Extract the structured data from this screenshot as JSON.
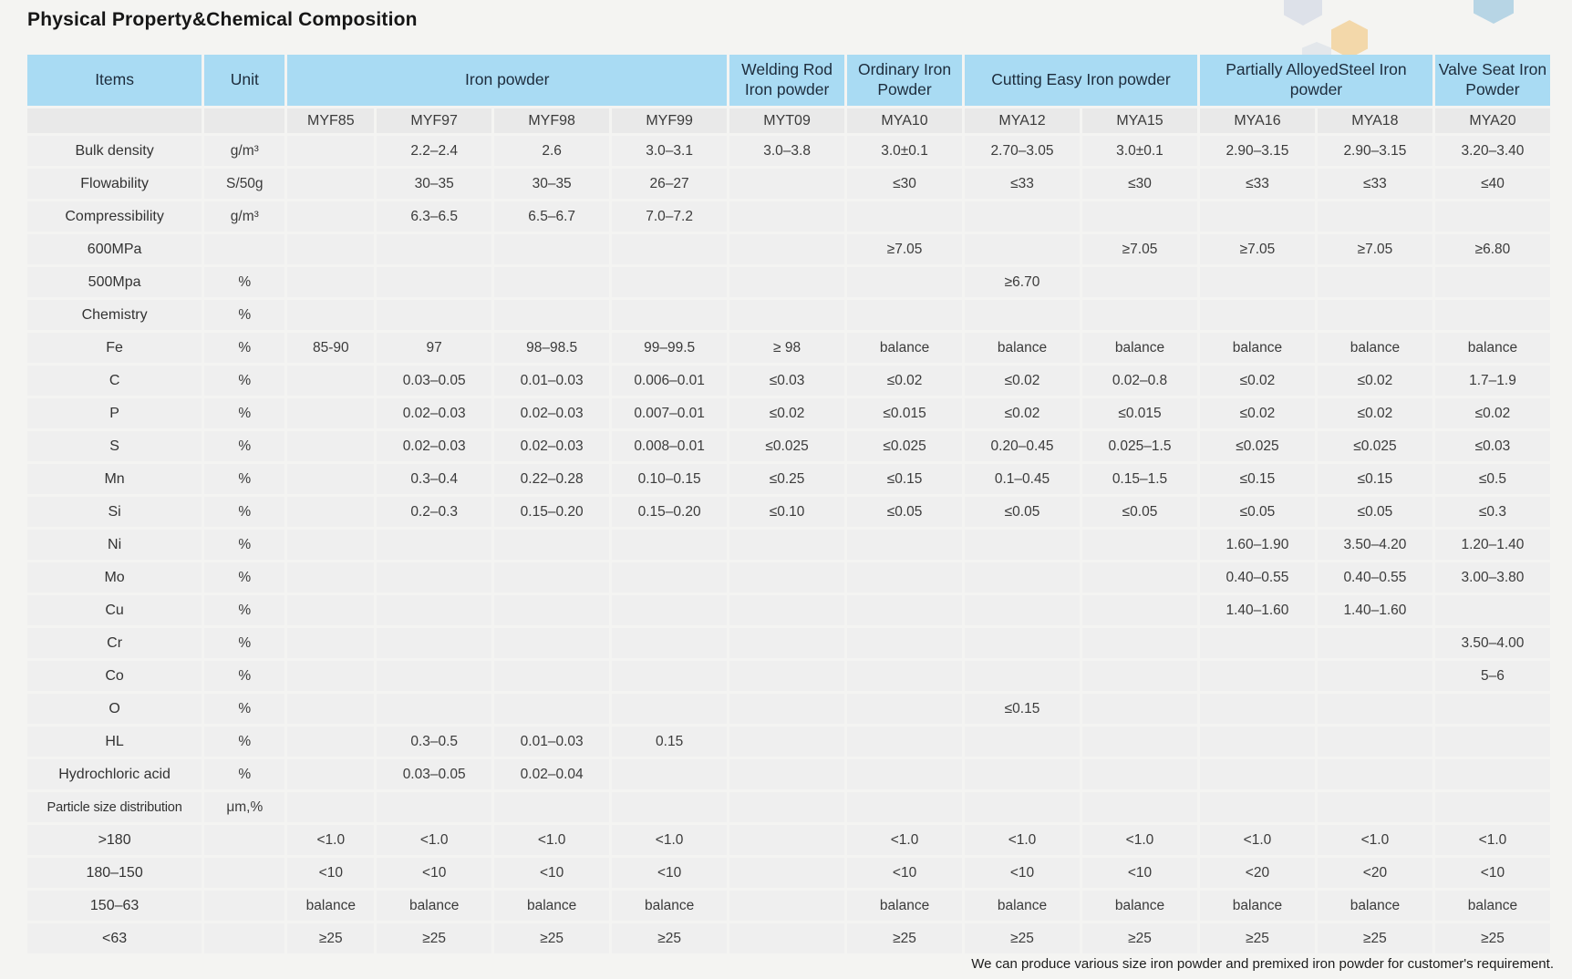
{
  "title": "Physical Property&Chemical Composition",
  "footer_note": "We can produce various size iron powder and premixed iron powder for customer's requirement.",
  "colors": {
    "header_blue": "#a9dbf3",
    "model_row_gray": "#e9e9e9",
    "cell_gray": "#efefef"
  },
  "table": {
    "groups": [
      {
        "label": "Items",
        "span": 1
      },
      {
        "label": "Unit",
        "span": 1
      },
      {
        "label": "Iron powder",
        "span": 4
      },
      {
        "label": "Welding Rod Iron powder",
        "span": 1
      },
      {
        "label": "Ordinary Iron Powder",
        "span": 1
      },
      {
        "label": "Cutting Easy Iron powder",
        "span": 2
      },
      {
        "label": "Partially AlloyedSteel Iron powder",
        "span": 2
      },
      {
        "label": "Valve Seat Iron Powder",
        "span": 1
      }
    ],
    "models": [
      "MYF85",
      "MYF97",
      "MYF98",
      "MYF99",
      "MYT09",
      "MYA10",
      "MYA12",
      "MYA15",
      "MYA16",
      "MYA18",
      "MYA20"
    ],
    "rows": [
      {
        "item": "Bulk density",
        "unit": "g/m³",
        "values": [
          "",
          "2.2–2.4",
          "2.6",
          "3.0–3.1",
          "3.0–3.8",
          "3.0±0.1",
          "2.70–3.05",
          "3.0±0.1",
          "2.90–3.15",
          "2.90–3.15",
          "3.20–3.40"
        ]
      },
      {
        "item": "Flowability",
        "unit": "S/50g",
        "values": [
          "",
          "30–35",
          "30–35",
          "26–27",
          "",
          "≤30",
          "≤33",
          "≤30",
          "≤33",
          "≤33",
          "≤40"
        ]
      },
      {
        "item": "Compressibility",
        "unit": "g/m³",
        "values": [
          "",
          "6.3–6.5",
          "6.5–6.7",
          "7.0–7.2",
          "",
          "",
          "",
          "",
          "",
          "",
          ""
        ]
      },
      {
        "item": "600MPa",
        "unit": "",
        "values": [
          "",
          "",
          "",
          "",
          "",
          "≥7.05",
          "",
          "≥7.05",
          "≥7.05",
          "≥7.05",
          "≥6.80"
        ]
      },
      {
        "item": "500Mpa",
        "unit": "%",
        "values": [
          "",
          "",
          "",
          "",
          "",
          "",
          "≥6.70",
          "",
          "",
          "",
          ""
        ]
      },
      {
        "item": "Chemistry",
        "unit": "%",
        "values": [
          "",
          "",
          "",
          "",
          "",
          "",
          "",
          "",
          "",
          "",
          ""
        ]
      },
      {
        "item": "Fe",
        "unit": "%",
        "values": [
          "85-90",
          "97",
          "98–98.5",
          "99–99.5",
          "≥ 98",
          "balance",
          "balance",
          "balance",
          "balance",
          "balance",
          "balance"
        ]
      },
      {
        "item": "C",
        "unit": "%",
        "values": [
          "",
          "0.03–0.05",
          "0.01–0.03",
          "0.006–0.01",
          "≤0.03",
          "≤0.02",
          "≤0.02",
          "0.02–0.8",
          "≤0.02",
          "≤0.02",
          "1.7–1.9"
        ]
      },
      {
        "item": "P",
        "unit": "%",
        "values": [
          "",
          "0.02–0.03",
          "0.02–0.03",
          "0.007–0.01",
          "≤0.02",
          "≤0.015",
          "≤0.02",
          "≤0.015",
          "≤0.02",
          "≤0.02",
          "≤0.02"
        ]
      },
      {
        "item": "S",
        "unit": "%",
        "values": [
          "",
          "0.02–0.03",
          "0.02–0.03",
          "0.008–0.01",
          "≤0.025",
          "≤0.025",
          "0.20–0.45",
          "0.025–1.5",
          "≤0.025",
          "≤0.025",
          "≤0.03"
        ]
      },
      {
        "item": "Mn",
        "unit": "%",
        "values": [
          "",
          "0.3–0.4",
          "0.22–0.28",
          "0.10–0.15",
          "≤0.25",
          "≤0.15",
          "0.1–0.45",
          "0.15–1.5",
          "≤0.15",
          "≤0.15",
          "≤0.5"
        ]
      },
      {
        "item": "Si",
        "unit": "%",
        "values": [
          "",
          "0.2–0.3",
          "0.15–0.20",
          "0.15–0.20",
          "≤0.10",
          "≤0.05",
          "≤0.05",
          "≤0.05",
          "≤0.05",
          "≤0.05",
          "≤0.3"
        ]
      },
      {
        "item": "Ni",
        "unit": "%",
        "values": [
          "",
          "",
          "",
          "",
          "",
          "",
          "",
          "",
          "1.60–1.90",
          "3.50–4.20",
          "1.20–1.40"
        ]
      },
      {
        "item": "Mo",
        "unit": "%",
        "values": [
          "",
          "",
          "",
          "",
          "",
          "",
          "",
          "",
          "0.40–0.55",
          "0.40–0.55",
          "3.00–3.80"
        ]
      },
      {
        "item": "Cu",
        "unit": "%",
        "values": [
          "",
          "",
          "",
          "",
          "",
          "",
          "",
          "",
          "1.40–1.60",
          "1.40–1.60",
          ""
        ]
      },
      {
        "item": "Cr",
        "unit": "%",
        "values": [
          "",
          "",
          "",
          "",
          "",
          "",
          "",
          "",
          "",
          "",
          "3.50–4.00"
        ]
      },
      {
        "item": "Co",
        "unit": "%",
        "values": [
          "",
          "",
          "",
          "",
          "",
          "",
          "",
          "",
          "",
          "",
          "5–6"
        ]
      },
      {
        "item": "O",
        "unit": "%",
        "values": [
          "",
          "",
          "",
          "",
          "",
          "",
          "≤0.15",
          "",
          "",
          "",
          ""
        ]
      },
      {
        "item": "HL",
        "unit": "%",
        "values": [
          "",
          "0.3–0.5",
          "0.01–0.03",
          "0.15",
          "",
          "",
          "",
          "",
          "",
          "",
          ""
        ]
      },
      {
        "item": "Hydrochloric acid",
        "unit": "%",
        "values": [
          "",
          "0.03–0.05",
          "0.02–0.04",
          "",
          "",
          "",
          "",
          "",
          "",
          "",
          ""
        ]
      },
      {
        "item": "Particle size distribution",
        "unit": "μm,%",
        "values": [
          "",
          "",
          "",
          "",
          "",
          "",
          "",
          "",
          "",
          "",
          ""
        ]
      },
      {
        "item": ">180",
        "unit": "",
        "values": [
          "<1.0",
          "<1.0",
          "<1.0",
          "<1.0",
          "",
          "<1.0",
          "<1.0",
          "<1.0",
          "<1.0",
          "<1.0",
          "<1.0"
        ]
      },
      {
        "item": "180–150",
        "unit": "",
        "values": [
          "<10",
          "<10",
          "<10",
          "<10",
          "",
          "<10",
          "<10",
          "<10",
          "<20",
          "<20",
          "<10"
        ]
      },
      {
        "item": "150–63",
        "unit": "",
        "values": [
          "balance",
          "balance",
          "balance",
          "balance",
          "",
          "balance",
          "balance",
          "balance",
          "balance",
          "balance",
          "balance"
        ]
      },
      {
        "item": "<63",
        "unit": "",
        "values": [
          "≥25",
          "≥25",
          "≥25",
          "≥25",
          "",
          "≥25",
          "≥25",
          "≥25",
          "≥25",
          "≥25",
          "≥25"
        ]
      }
    ]
  }
}
